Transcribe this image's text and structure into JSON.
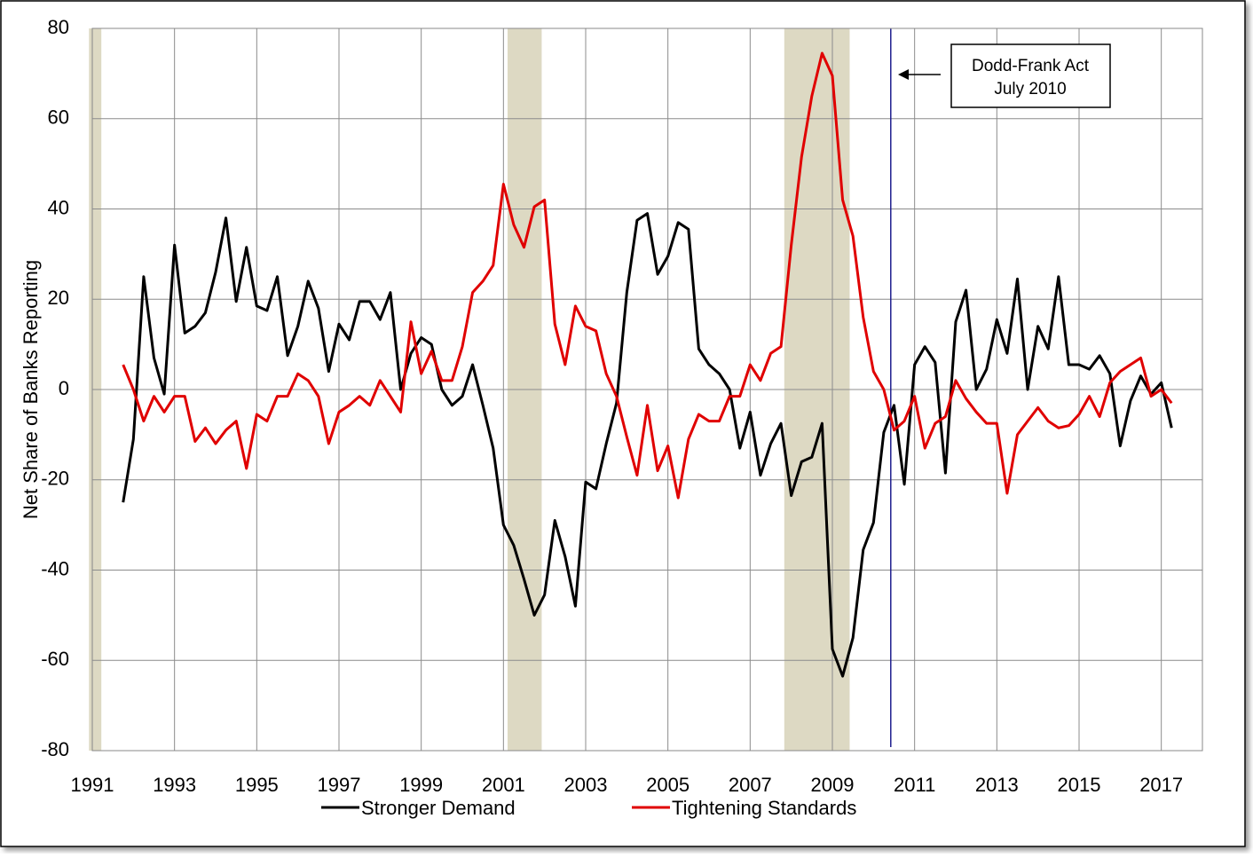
{
  "chart_data": {
    "type": "line",
    "y_label": "Net Share of Banks Reporting",
    "xlim": [
      1991,
      2018
    ],
    "ylim": [
      -80,
      80
    ],
    "xticks": [
      1991,
      1993,
      1995,
      1997,
      1999,
      2001,
      2003,
      2005,
      2007,
      2009,
      2011,
      2013,
      2015,
      2017
    ],
    "yticks": [
      -80,
      -60,
      -40,
      -20,
      0,
      20,
      40,
      60,
      80
    ],
    "grid": true,
    "recession_color": "#ddd9c3",
    "recessions": [
      [
        1990.92,
        1991.22
      ],
      [
        2001.1,
        2001.93
      ],
      [
        2007.83,
        2009.42
      ]
    ],
    "event_line": {
      "x": 2010.42,
      "color": "#1f1f8f"
    },
    "annotation": {
      "line1": "Dodd-Frank Act",
      "line2": "July 2010"
    },
    "x": [
      1991.75,
      1992,
      1992.25,
      1992.5,
      1992.75,
      1993,
      1993.25,
      1993.5,
      1993.75,
      1994,
      1994.25,
      1994.5,
      1994.75,
      1995,
      1995.25,
      1995.5,
      1995.75,
      1996,
      1996.25,
      1996.5,
      1996.75,
      1997,
      1997.25,
      1997.5,
      1997.75,
      1998,
      1998.25,
      1998.5,
      1998.75,
      1999,
      1999.25,
      1999.5,
      1999.75,
      2000,
      2000.25,
      2000.5,
      2000.75,
      2001,
      2001.25,
      2001.5,
      2001.75,
      2002,
      2002.25,
      2002.5,
      2002.75,
      2003,
      2003.25,
      2003.5,
      2003.75,
      2004,
      2004.25,
      2004.5,
      2004.75,
      2005,
      2005.25,
      2005.5,
      2005.75,
      2006,
      2006.25,
      2006.5,
      2006.75,
      2007,
      2007.25,
      2007.5,
      2007.75,
      2008,
      2008.25,
      2008.5,
      2008.75,
      2009,
      2009.25,
      2009.5,
      2009.75,
      2010,
      2010.25,
      2010.5,
      2010.75,
      2011,
      2011.25,
      2011.5,
      2011.75,
      2012,
      2012.25,
      2012.5,
      2012.75,
      2013,
      2013.25,
      2013.5,
      2013.75,
      2014,
      2014.25,
      2014.5,
      2014.75,
      2015,
      2015.25,
      2015.5,
      2015.75,
      2016,
      2016.25,
      2016.5,
      2016.75,
      2017,
      2017.25
    ],
    "series": [
      {
        "name": "Stronger Demand",
        "color": "#000000",
        "values": [
          -25,
          -11,
          25,
          7,
          -1,
          32,
          12.5,
          14,
          17,
          26,
          38,
          19.5,
          31.5,
          18.5,
          17.5,
          25,
          7.5,
          14,
          24,
          18,
          4,
          14.5,
          11,
          19.5,
          19.5,
          15.5,
          21.5,
          0,
          8,
          11.5,
          10,
          0,
          -3.5,
          -1.5,
          5.5,
          -3.5,
          -13,
          -30,
          -34.5,
          -42,
          -50,
          -45.5,
          -29,
          -37,
          -48,
          -20.5,
          -22,
          -12,
          -3,
          21.5,
          37.5,
          39,
          25.5,
          29.5,
          37,
          35.5,
          9,
          5.5,
          3.5,
          0,
          -13,
          -5,
          -19,
          -12,
          -7.5,
          -23.5,
          -16,
          -15,
          -7.5,
          -57.5,
          -63.5,
          -55,
          -35.5,
          -29.5,
          -9.5,
          -3.5,
          -21,
          5.5,
          9.5,
          6,
          -18.5,
          15,
          22,
          0,
          4.5,
          15.5,
          8,
          24.5,
          0,
          14,
          9,
          25,
          5.5,
          5.5,
          4.5,
          7.5,
          3.5,
          -12.5,
          -2.5,
          3,
          -1,
          1.5,
          -8.5
        ]
      },
      {
        "name": "Tightening Standards",
        "color": "#e00000",
        "values": [
          5.5,
          0,
          -7,
          -1.5,
          -5,
          -1.5,
          -1.5,
          -11.5,
          -8.5,
          -12,
          -9,
          -7,
          -17.5,
          -5.5,
          -7,
          -1.5,
          -1.5,
          3.5,
          2,
          -1.5,
          -12,
          -5,
          -3.5,
          -1.5,
          -3.5,
          2,
          -1.5,
          -5,
          15,
          3.5,
          8.5,
          2,
          2,
          9.5,
          21.5,
          24,
          27.5,
          45.5,
          36.5,
          31.5,
          40.5,
          42,
          14.5,
          5.5,
          18.5,
          14,
          13,
          3.5,
          -1.5,
          -10.5,
          -19,
          -3.5,
          -18,
          -12.5,
          -24,
          -11,
          -5.5,
          -7,
          -7,
          -1.5,
          -1.5,
          5.5,
          2,
          8,
          9.5,
          32,
          51.5,
          65,
          74.5,
          69.5,
          42,
          34,
          16,
          4,
          0,
          -9,
          -7,
          -1.5,
          -13,
          -7.5,
          -6,
          2,
          -2,
          -5,
          -7.5,
          -7.5,
          -23,
          -10,
          -7,
          -4,
          -7,
          -8.5,
          -8,
          -5.5,
          -1.5,
          -6,
          1.5,
          4,
          5.5,
          7,
          -1.5,
          0,
          -3
        ]
      }
    ]
  }
}
